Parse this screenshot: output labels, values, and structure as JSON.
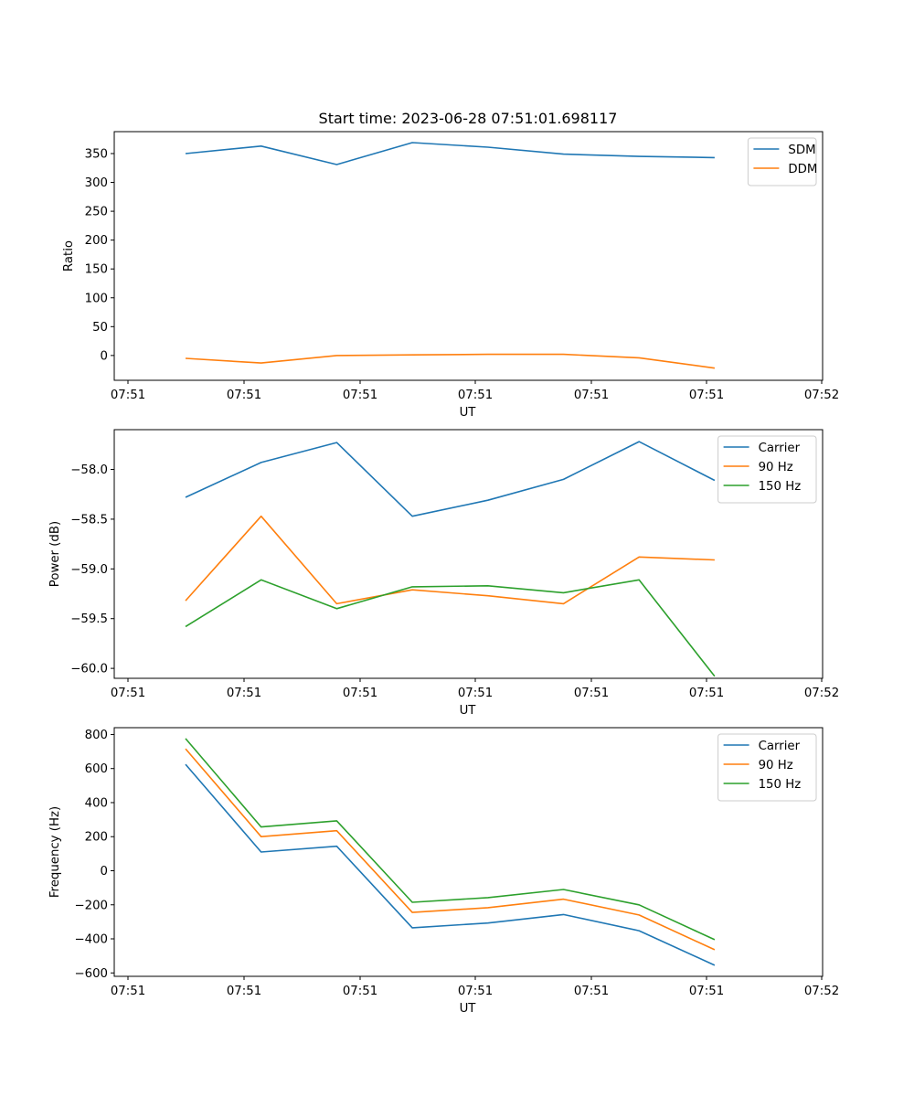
{
  "figure": {
    "title": "Start time: 2023-06-28 07:51:01.698117"
  },
  "chart_data": [
    {
      "type": "line",
      "xlabel": "UT",
      "ylabel": "Ratio",
      "x_tick_labels": [
        "07:51",
        "07:51",
        "07:51",
        "07:51",
        "07:51",
        "07:51",
        "07:52"
      ],
      "y_ticks": [
        0,
        50,
        100,
        150,
        200,
        250,
        300,
        350
      ],
      "y_tick_labels": [
        "0",
        "50",
        "100",
        "150",
        "200",
        "250",
        "300",
        "350"
      ],
      "ylim": [
        -43,
        388
      ],
      "legend_position": "top-right",
      "grid": false,
      "x": [
        1,
        2,
        3,
        4,
        5,
        6,
        7,
        8
      ],
      "series": [
        {
          "name": "SDM",
          "color": "#1f77b4",
          "values": [
            350,
            363,
            331,
            369,
            361,
            349,
            345,
            343
          ]
        },
        {
          "name": "DDM",
          "color": "#ff7f0e",
          "values": [
            -5,
            -13,
            0,
            1,
            2,
            2,
            -4,
            -22
          ]
        }
      ]
    },
    {
      "type": "line",
      "xlabel": "UT",
      "ylabel": "Power (dB)",
      "x_tick_labels": [
        "07:51",
        "07:51",
        "07:51",
        "07:51",
        "07:51",
        "07:51",
        "07:52"
      ],
      "y_ticks": [
        -58.0,
        -58.5,
        -59.0,
        -59.5,
        -60.0
      ],
      "y_tick_labels": [
        "−58.0",
        "−58.5",
        "−59.0",
        "−59.5",
        "−60.0"
      ],
      "ylim": [
        -60.1,
        -57.6
      ],
      "legend_position": "top-right",
      "grid": false,
      "x": [
        1,
        2,
        3,
        4,
        5,
        6,
        7,
        8
      ],
      "series": [
        {
          "name": "Carrier",
          "color": "#1f77b4",
          "values": [
            -58.28,
            -57.93,
            -57.73,
            -58.47,
            -58.31,
            -58.1,
            -57.72,
            -58.11
          ]
        },
        {
          "name": "90 Hz",
          "color": "#ff7f0e",
          "values": [
            -59.32,
            -58.47,
            -59.35,
            -59.21,
            -59.27,
            -59.35,
            -58.88,
            -58.91
          ]
        },
        {
          "name": "150 Hz",
          "color": "#2ca02c",
          "values": [
            -59.58,
            -59.11,
            -59.4,
            -59.18,
            -59.17,
            -59.24,
            -59.11,
            -60.08
          ]
        }
      ]
    },
    {
      "type": "line",
      "xlabel": "UT",
      "ylabel": "Frequency (Hz)",
      "x_tick_labels": [
        "07:51",
        "07:51",
        "07:51",
        "07:51",
        "07:51",
        "07:51",
        "07:52"
      ],
      "y_ticks": [
        800,
        600,
        400,
        200,
        0,
        -200,
        -400,
        -600
      ],
      "y_tick_labels": [
        "800",
        "600",
        "400",
        "200",
        "0",
        "−200",
        "−400",
        "−600"
      ],
      "ylim": [
        -620,
        840
      ],
      "legend_position": "top-right",
      "grid": false,
      "x": [
        1,
        2,
        3,
        4,
        5,
        6,
        7,
        8
      ],
      "series": [
        {
          "name": "Carrier",
          "color": "#1f77b4",
          "values": [
            625,
            110,
            144,
            -335,
            -307,
            -257,
            -352,
            -555
          ]
        },
        {
          "name": "90 Hz",
          "color": "#ff7f0e",
          "values": [
            716,
            200,
            235,
            -245,
            -217,
            -167,
            -260,
            -464
          ]
        },
        {
          "name": "150 Hz",
          "color": "#2ca02c",
          "values": [
            776,
            257,
            293,
            -185,
            -158,
            -110,
            -200,
            -405
          ]
        }
      ]
    }
  ]
}
